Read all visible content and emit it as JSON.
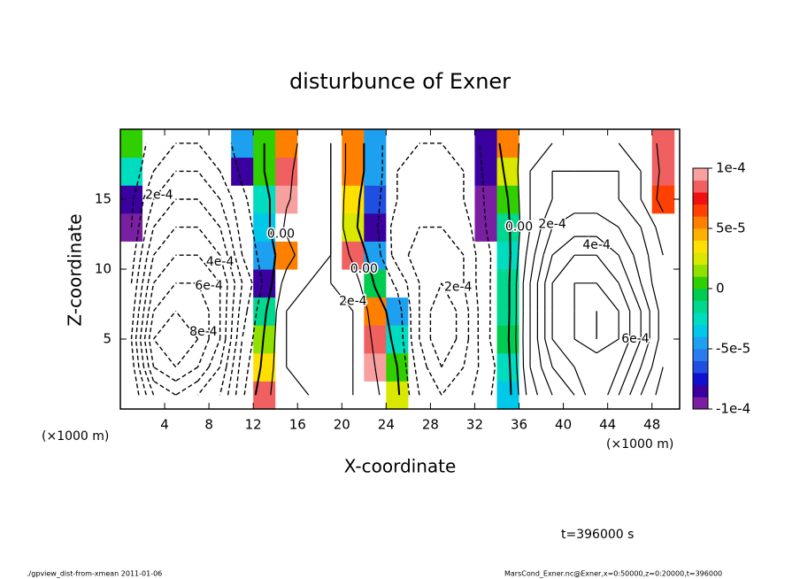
{
  "chart_data": {
    "type": "contour",
    "title": "disturbunce of Exner",
    "xlabel": "X-coordinate",
    "ylabel": "Z-coordinate",
    "x_unit": "(×1000 m)",
    "y_unit": "(×1000 m)",
    "xlim": [
      0,
      50.5
    ],
    "ylim": [
      0,
      20
    ],
    "xticks": [
      4,
      8,
      12,
      16,
      20,
      24,
      28,
      32,
      36,
      40,
      44,
      48
    ],
    "yticks": [
      5,
      10,
      15
    ],
    "x": [
      1,
      3,
      5,
      7,
      9,
      11,
      13,
      15,
      17,
      19,
      21,
      23,
      25,
      27,
      29,
      31,
      33,
      35,
      37,
      39,
      41,
      43,
      45,
      47,
      49
    ],
    "y": [
      1,
      3,
      5,
      7,
      9,
      11,
      13,
      15,
      17,
      19
    ],
    "z": [
      [
        -0.0002,
        -0.0005,
        -0.0006,
        -0.0005,
        -0.0004,
        -0.00012,
        8e-05,
        0.00015,
        0.0002,
        0.0002,
        0.0002,
        0.00012,
        2e-05,
        -0.0002,
        -0.0003,
        -0.00025,
        -0.00012,
        -4e-05,
        0.00025,
        0.0004,
        0.0005,
        0.0007,
        0.0005,
        0.0003,
        0.00015
      ],
      [
        -0.00025,
        -0.0007,
        -0.0008,
        -0.0007,
        -0.0005,
        -0.00015,
        3e-05,
        0.0002,
        0.0002,
        0.00025,
        0.0002,
        0.0001,
        0,
        -0.00025,
        -0.0004,
        -0.0003,
        -0.00015,
        -3e-05,
        0.0003,
        0.0005,
        0.0006,
        0.0006,
        0.0006,
        0.0004,
        0.0002
      ],
      [
        -0.0003,
        -0.0008,
        -0.0009,
        -0.0008,
        -0.0006,
        -0.0002,
        1e-05,
        0.0002,
        0.00025,
        0.00025,
        0.0002,
        8e-05,
        -3e-05,
        -0.0003,
        -0.0005,
        -0.00035,
        -0.00012,
        -1e-05,
        0.0003,
        0.0006,
        0.0007,
        0.0008,
        0.0007,
        0.0005,
        0.00025
      ],
      [
        -0.00025,
        -0.0007,
        -0.0008,
        -0.0008,
        -0.0006,
        -0.00025,
        -2e-05,
        0.0002,
        0.0002,
        0.0002,
        0.0002,
        5e-05,
        -5e-05,
        -0.0003,
        -0.0005,
        -0.00035,
        -0.00012,
        -2e-05,
        0.0003,
        0.0006,
        0.0007,
        0.0008,
        0.0007,
        0.0005,
        0.00025
      ],
      [
        -0.0002,
        -0.0006,
        -0.0007,
        -0.0007,
        -0.0006,
        -0.0003,
        -8e-05,
        0.00015,
        0.0002,
        0.0002,
        0.00015,
        -1e-05,
        -0.00012,
        -0.0003,
        -0.0004,
        -0.0003,
        -0.00012,
        -2e-05,
        0.0003,
        0.0006,
        0.0007,
        0.0007,
        0.0006,
        0.0004,
        0.0002
      ],
      [
        -0.00015,
        -0.0005,
        -0.0006,
        -0.0006,
        -0.0005,
        -0.0002,
        -5e-05,
        5e-05,
        0.00018,
        0.0002,
        8e-05,
        -5e-05,
        -0.00025,
        -0.00035,
        -0.00035,
        -0.0003,
        -0.00012,
        -3e-05,
        0.00025,
        0.0005,
        0.0006,
        0.0006,
        0.0005,
        0.00035,
        0.0002
      ],
      [
        -0.0001,
        -0.0004,
        -0.0005,
        -0.0005,
        -0.0004,
        -0.00015,
        -4e-05,
        0.00012,
        0.00018,
        0.0002,
        2e-05,
        -8e-05,
        -0.00025,
        -0.0003,
        -0.0003,
        -0.00025,
        -0.0001,
        -2e-05,
        0.0002,
        0.0004,
        0.00045,
        0.00045,
        0.0004,
        0.0003,
        0.00015
      ],
      [
        -8e-05,
        -0.0003,
        -0.0004,
        -0.0004,
        -0.0003,
        -0.00012,
        -3e-05,
        9e-05,
        0.00015,
        0.0002,
        3e-05,
        -7e-05,
        -0.0002,
        -0.00025,
        -0.00025,
        -0.0002,
        -9e-05,
        0,
        0.0002,
        0.0003,
        0.00035,
        0.00035,
        0.0003,
        0.0002,
        6e-05
      ],
      [
        -3e-05,
        -0.0002,
        -0.0003,
        -0.0003,
        -0.0002,
        -8e-05,
        0,
        8e-05,
        0.00015,
        0.0002,
        5e-05,
        -5e-05,
        -0.0002,
        -0.00025,
        -0.00025,
        -0.0002,
        -8e-05,
        2e-05,
        0.0002,
        0.0003,
        0.0003,
        0.0003,
        0.0003,
        0.0002,
        8e-05
      ],
      [
        0,
        -0.00015,
        -0.0002,
        -0.0002,
        -0.00015,
        -5e-05,
        0,
        5e-05,
        0.00015,
        0.0002,
        5e-05,
        -5e-05,
        -0.0002,
        -0.0002,
        -0.0002,
        -0.00015,
        -8e-05,
        5e-05,
        0.00015,
        0.0002,
        0.00025,
        0.00025,
        0.0002,
        0.00015,
        8e-05
      ]
    ],
    "clim": [
      -0.0001,
      0.0001
    ],
    "colors": [
      "#7a1fa2",
      "#3a00a0",
      "#1010d0",
      "#1f4fe0",
      "#2a7af0",
      "#1ea0f0",
      "#00c8e8",
      "#00dcc0",
      "#00d890",
      "#00cc50",
      "#30d000",
      "#90e000",
      "#d8e800",
      "#ffe000",
      "#ffb000",
      "#ff8000",
      "#ff4000",
      "#f01010",
      "#f06060",
      "#f8a0a0"
    ],
    "cticks": [
      {
        "value": 0.0001,
        "label": "1e-4"
      },
      {
        "value": 5e-05,
        "label": "5e-5"
      },
      0,
      {
        "value": -5e-05,
        "label": "-5e-5"
      },
      {
        "value": -0.0001,
        "label": "-1e-4"
      }
    ],
    "contour_levels": [
      -0.0008,
      -0.0007,
      -0.0006,
      -0.0005,
      -0.0004,
      -0.0003,
      -0.0002,
      -0.0001,
      0,
      0.0001,
      0.0002,
      0.0003,
      0.0004,
      0.0005,
      0.0006,
      0.0007,
      0.0008
    ],
    "annotations": [
      {
        "text": "2e-4",
        "x": 3.5,
        "y": 15.3
      },
      {
        "text": "4e-4",
        "x": 9,
        "y": 10.5
      },
      {
        "text": "6e-4",
        "x": 8,
        "y": 8.8
      },
      {
        "text": "8e-4",
        "x": 7.5,
        "y": 5.5
      },
      {
        "text": "0.00",
        "x": 14.5,
        "y": 12.5
      },
      {
        "text": "0.00",
        "x": 22,
        "y": 10
      },
      {
        "text": "2e-4",
        "x": 21,
        "y": 7.7
      },
      {
        "text": "2e-4",
        "x": 30.5,
        "y": 8.7
      },
      {
        "text": "0.00",
        "x": 36,
        "y": 13
      },
      {
        "text": "2e-4",
        "x": 39,
        "y": 13.2
      },
      {
        "text": "4e-4",
        "x": 43,
        "y": 11.7
      },
      {
        "text": "6e-4",
        "x": 46.5,
        "y": 5
      }
    ],
    "time_label": "t=396000 s",
    "footer_left": "./gpview_dist-from-xmean  2011-01-06",
    "footer_right": "MarsCond_Exner.nc@Exner,x=0:50000,z=0:20000,t=396000"
  }
}
